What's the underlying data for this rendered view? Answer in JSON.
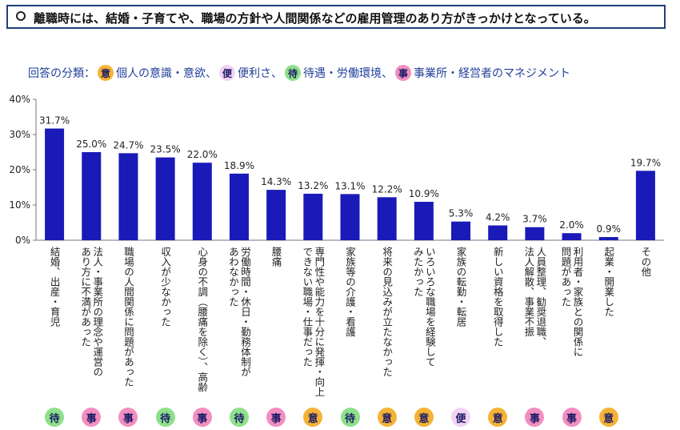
{
  "headline": "離職時には、結婚・子育てや、職場の方針や人間関係などの雇用管理のあり方がきっかけとなっている。",
  "legend": {
    "prefix": "回答の分類：",
    "items": [
      {
        "code": "意",
        "label": "個人の意識・意欲、",
        "color": "#f5b335"
      },
      {
        "code": "便",
        "label": "便利さ、",
        "color": "#f3d2f3"
      },
      {
        "code": "待",
        "label": "待遇・労働環境、",
        "color": "#8fe08a"
      },
      {
        "code": "事",
        "label": "事業所・経営者のマネジメント",
        "color": "#f28fc0"
      }
    ]
  },
  "category_colors": {
    "意": "#f5b335",
    "便": "#f3d2f3",
    "待": "#8fe08a",
    "事": "#f28fc0"
  },
  "chart_data": {
    "type": "bar",
    "ylim": [
      0,
      40
    ],
    "yticks": [
      "0%",
      "10%",
      "20%",
      "30%",
      "40%"
    ],
    "bar_color": "#1a1ab8",
    "categories": [
      [
        "結婚、出産・育児"
      ],
      [
        "法人・事業所の理念や運営の",
        "あり方に不満があった"
      ],
      [
        "職場の人間関係に問題があった"
      ],
      [
        "収入が少なかった"
      ],
      [
        "心身の不調（腰痛を除く）、高齢"
      ],
      [
        "労働時間・休日・勤務体制が",
        "あわなかった"
      ],
      [
        "腰痛"
      ],
      [
        "専門性や能力を十分に発揮・向上",
        "できない職場・仕事だった"
      ],
      [
        "家族等の介護・看護"
      ],
      [
        "将来の見込みが立たなかった"
      ],
      [
        "いろいろな職場を経験して",
        "みたかった"
      ],
      [
        "家族の転勤・転居"
      ],
      [
        "新しい資格を取得した"
      ],
      [
        "人員整理、勧奨退職、",
        "法人解散、事業不振"
      ],
      [
        "利用者・家族との関係に",
        "問題があった"
      ],
      [
        "起業・開業した"
      ],
      [
        "その他"
      ]
    ],
    "values": [
      31.7,
      25.0,
      24.7,
      23.5,
      22.0,
      18.9,
      14.3,
      13.2,
      13.1,
      12.2,
      10.9,
      5.3,
      4.2,
      3.7,
      2.0,
      0.9,
      19.7
    ],
    "data_labels": [
      "31.7%",
      "25.0%",
      "24.7%",
      "23.5%",
      "22.0%",
      "18.9%",
      "14.3%",
      "13.2%",
      "13.1%",
      "12.2%",
      "10.9%",
      "5.3%",
      "4.2%",
      "3.7%",
      "2.0%",
      "0.9%",
      "19.7%"
    ],
    "bar_categories": [
      "待",
      "事",
      "事",
      "待",
      "事",
      "待",
      "事",
      "意",
      "待",
      "意",
      "意",
      "便",
      "意",
      "事",
      "事",
      "意",
      ""
    ]
  }
}
